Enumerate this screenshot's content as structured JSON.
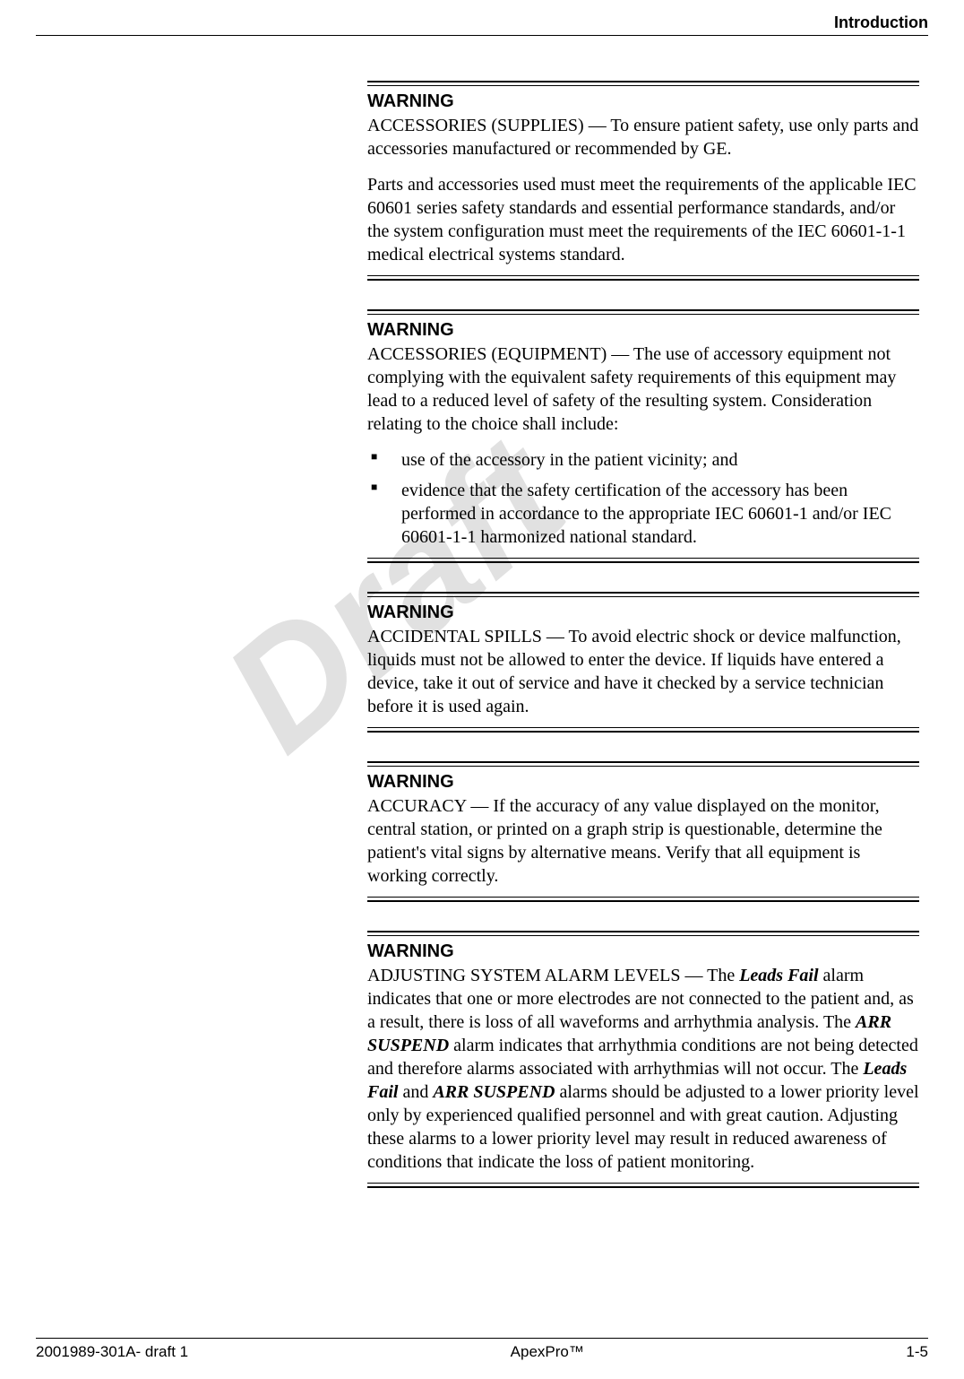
{
  "header": {
    "section_title": "Introduction"
  },
  "watermark": "Draft",
  "warnings": [
    {
      "title": "WARNING",
      "paragraphs": [
        "ACCESSORIES (SUPPLIES) — To ensure patient safety, use only parts and accessories manufactured or recommended by GE.",
        "Parts and accessories used must meet the requirements of the applicable IEC 60601 series safety standards and essential performance standards, and/or the system configuration must meet the requirements of the IEC 60601-1-1 medical electrical systems standard."
      ]
    },
    {
      "title": "WARNING",
      "intro": "ACCESSORIES (EQUIPMENT) — The use of accessory equipment not complying with the equivalent safety requirements of this equipment may lead to a reduced level of safety of the resulting system. Consideration relating to the choice shall include:",
      "list": [
        "use of the accessory in the patient vicinity; and",
        "evidence that the safety certification of the accessory has been performed in accordance to the appropriate IEC 60601-1 and/or IEC 60601-1-1 harmonized national standard."
      ]
    },
    {
      "title": "WARNING",
      "paragraphs": [
        "ACCIDENTAL SPILLS — To avoid electric shock or device malfunction, liquids must not be allowed to enter the device. If liquids have entered a device, take it out of service and have it checked by a service technician before it is used again."
      ]
    },
    {
      "title": "WARNING",
      "paragraphs": [
        "ACCURACY — If the accuracy of any value displayed on the monitor, central station, or printed on a graph strip is questionable, determine the patient's vital signs by alternative means. Verify that all equipment is working correctly."
      ]
    },
    {
      "title": "WARNING",
      "alarm_paragraph": {
        "prefix": "ADJUSTING SYSTEM ALARM LEVELS — The ",
        "term1": "Leads Fail",
        "mid1": " alarm indicates that one or more electrodes are not connected to the patient and, as a result, there is loss of all waveforms and arrhythmia analysis. The ",
        "term2": "ARR SUSPEND",
        "mid2": " alarm indicates that arrhythmia conditions are not being detected and therefore alarms associated with arrhythmias will not occur. The ",
        "term3": "Leads Fail",
        "mid3": " and ",
        "term4": "ARR SUSPEND",
        "suffix": " alarms should be adjusted to a lower priority level only by experienced qualified personnel and with great caution. Adjusting these alarms to a lower priority level may result in reduced awareness of conditions that indicate the loss of patient monitoring."
      }
    }
  ],
  "footer": {
    "left": "2001989-301A- draft 1",
    "center": "ApexPro™",
    "right": "1-5"
  },
  "colors": {
    "text": "#000000",
    "background": "#ffffff",
    "watermark": "rgba(120,120,120,0.22)"
  }
}
